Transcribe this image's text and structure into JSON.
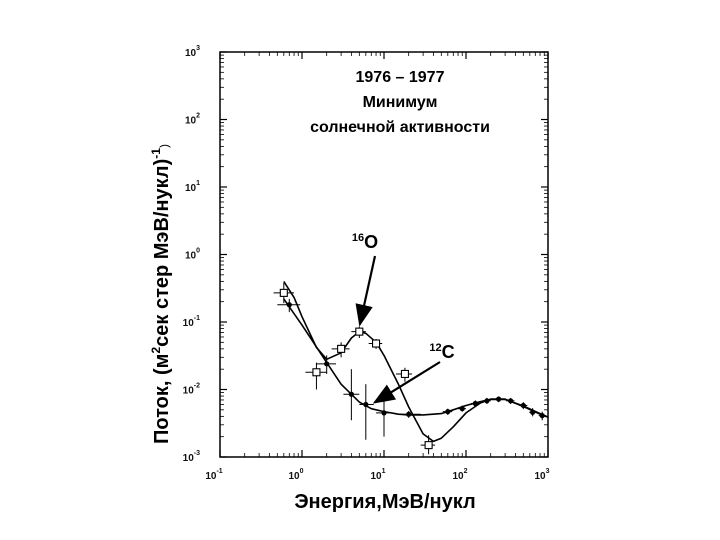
{
  "chart_data": {
    "type": "scatter",
    "title_lines": [
      "1976 – 1977",
      "Минимум",
      "солнечной активности"
    ],
    "xlabel": "Энергия,МэВ/нукл",
    "ylabel": "Поток, (м²сек стер МэВ/нукл)⁻¹",
    "ylabel_parts": {
      "pre": "Поток, (м",
      "sup1": "2",
      "mid": "сек стер МэВ/нукл)",
      "sup2": "-1",
      "post": ")"
    },
    "x_scale": "log",
    "y_scale": "log",
    "xlim": [
      0.1,
      1000
    ],
    "ylim": [
      0.001,
      1000
    ],
    "x_ticks": [
      {
        "base": "10",
        "exp": "-1"
      },
      {
        "base": "10",
        "exp": "0"
      },
      {
        "base": "10",
        "exp": "1"
      },
      {
        "base": "10",
        "exp": "2"
      },
      {
        "base": "10",
        "exp": "3"
      }
    ],
    "y_ticks": [
      {
        "base": "10",
        "exp": "-3"
      },
      {
        "base": "10",
        "exp": "-2"
      },
      {
        "base": "10",
        "exp": "-1"
      },
      {
        "base": "10",
        "exp": "0"
      },
      {
        "base": "10",
        "exp": "1"
      },
      {
        "base": "10",
        "exp": "2"
      },
      {
        "base": "10",
        "exp": "3"
      }
    ],
    "grid": false,
    "series": [
      {
        "name": "16O",
        "label_main": "O",
        "label_sup": "16",
        "marker": "open-square",
        "points": [
          {
            "x": 0.6,
            "y": 0.27,
            "xerr": [
              0.45,
              0.8
            ],
            "yerr": [
              0.19,
              0.38
            ]
          },
          {
            "x": 1.5,
            "y": 0.018,
            "xerr": [
              1.1,
              2.0
            ],
            "yerr": [
              0.01,
              0.025
            ]
          },
          {
            "x": 3.0,
            "y": 0.04,
            "xerr": [
              2.3,
              3.8
            ],
            "yerr": [
              0.03,
              0.05
            ]
          },
          {
            "x": 5.0,
            "y": 0.072,
            "xerr": [
              4.0,
              6.0
            ],
            "yerr": [
              0.058,
              0.086
            ]
          },
          {
            "x": 8.0,
            "y": 0.048,
            "xerr": [
              6.5,
              9.5
            ],
            "yerr": [
              0.04,
              0.056
            ]
          },
          {
            "x": 18.0,
            "y": 0.017,
            "xerr": [
              14.0,
              22.0
            ],
            "yerr": [
              0.013,
              0.021
            ]
          },
          {
            "x": 35.0,
            "y": 0.0015,
            "xerr": [
              28.0,
              42.0
            ],
            "yerr": [
              0.0011,
              0.0021
            ]
          }
        ],
        "curve_x": [
          0.6,
          0.8,
          1.0,
          1.5,
          2.0,
          3.0,
          4.0,
          5.0,
          6.0,
          8.0,
          10.0,
          15.0,
          20.0,
          30.0,
          40.0,
          50.0,
          70.0,
          100.0,
          150.0,
          200.0,
          300.0,
          500.0,
          800.0,
          1000.0
        ],
        "curve_y": [
          0.4,
          0.23,
          0.12,
          0.042,
          0.028,
          0.035,
          0.058,
          0.072,
          0.068,
          0.05,
          0.032,
          0.012,
          0.0055,
          0.0022,
          0.0017,
          0.0019,
          0.0028,
          0.0045,
          0.0063,
          0.0072,
          0.0072,
          0.0056,
          0.0043,
          0.0039
        ]
      },
      {
        "name": "12C",
        "label_main": "C",
        "label_sup": "12",
        "marker": "filled-circle",
        "points": [
          {
            "x": 0.7,
            "y": 0.18,
            "xerr": [
              0.5,
              0.95
            ],
            "yerr": [
              0.14,
              0.22
            ]
          },
          {
            "x": 2.0,
            "y": 0.024,
            "xerr": [
              1.5,
              2.6
            ],
            "yerr": [
              0.017,
              0.032
            ]
          },
          {
            "x": 4.0,
            "y": 0.0085,
            "xerr": [
              3.2,
              5.0
            ],
            "yerr": [
              0.0035,
              0.02
            ]
          },
          {
            "x": 6.0,
            "y": 0.006,
            "xerr": [
              5.0,
              7.5
            ],
            "yerr": [
              0.0018,
              0.012
            ]
          },
          {
            "x": 10.0,
            "y": 0.0045,
            "xerr": [
              8.0,
              12.5
            ],
            "yerr": [
              0.002,
              0.007
            ]
          },
          {
            "x": 20.0,
            "y": 0.0043,
            "xerr": [
              15.0,
              28.0
            ],
            "yerr": [
              0.0038,
              0.0048
            ]
          },
          {
            "x": 60.0,
            "y": 0.0047,
            "xerr": [
              52.0,
              68.0
            ],
            "yerr": [
              0.0042,
              0.0052
            ]
          },
          {
            "x": 90.0,
            "y": 0.0052,
            "xerr": [
              80.0,
              100.0
            ],
            "yerr": [
              0.0047,
              0.0058
            ]
          },
          {
            "x": 130.0,
            "y": 0.0062,
            "xerr": [
              115.0,
              145.0
            ],
            "yerr": [
              0.0055,
              0.0069
            ]
          },
          {
            "x": 180.0,
            "y": 0.0068,
            "xerr": [
              160.0,
              200.0
            ],
            "yerr": [
              0.0061,
              0.0075
            ]
          },
          {
            "x": 250.0,
            "y": 0.0072,
            "xerr": [
              225.0,
              280.0
            ],
            "yerr": [
              0.0065,
              0.0079
            ]
          },
          {
            "x": 350.0,
            "y": 0.0068,
            "xerr": [
              310.0,
              390.0
            ],
            "yerr": [
              0.0061,
              0.0075
            ]
          },
          {
            "x": 500.0,
            "y": 0.0058,
            "xerr": [
              450.0,
              560.0
            ],
            "yerr": [
              0.0051,
              0.0065
            ]
          },
          {
            "x": 650.0,
            "y": 0.0046,
            "xerr": [
              590.0,
              720.0
            ],
            "yerr": [
              0.004,
              0.0053
            ]
          },
          {
            "x": 850.0,
            "y": 0.0041,
            "xerr": [
              770.0,
              940.0
            ],
            "yerr": [
              0.0035,
              0.0047
            ]
          }
        ],
        "curve_x": [
          0.6,
          1.0,
          2.0,
          3.0,
          5.0,
          7.0,
          10.0,
          15.0,
          20.0,
          30.0,
          50.0,
          70.0,
          100.0,
          150.0,
          200.0,
          300.0,
          500.0,
          800.0,
          1000.0
        ],
        "curve_y": [
          0.22,
          0.09,
          0.025,
          0.012,
          0.0065,
          0.0052,
          0.0047,
          0.0043,
          0.0042,
          0.0042,
          0.0044,
          0.005,
          0.0058,
          0.0066,
          0.0071,
          0.0071,
          0.0057,
          0.0044,
          0.0039
        ]
      }
    ],
    "annotations": [
      {
        "series": "16O",
        "text_main": "O",
        "text_sup": "16",
        "target": {
          "x": 4.8,
          "y": 0.075
        }
      },
      {
        "series": "12C",
        "text_main": "C",
        "text_sup": "12",
        "target": {
          "x": 6.5,
          "y": 0.006
        }
      }
    ]
  }
}
